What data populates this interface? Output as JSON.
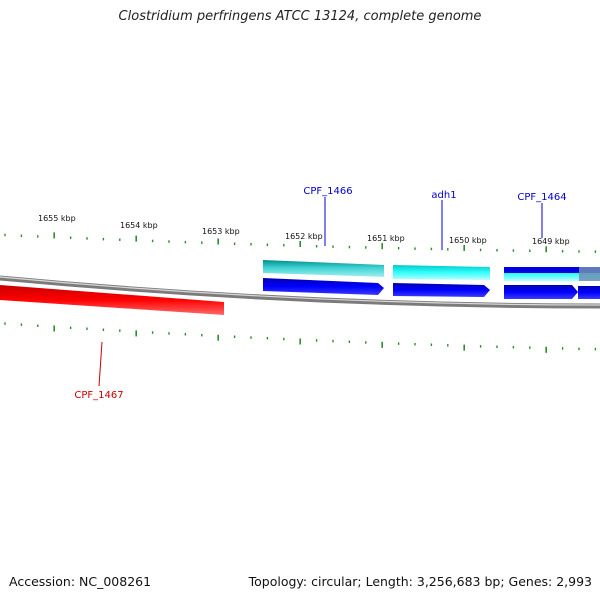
{
  "title": "Clostridium perfringens ATCC 13124, complete genome",
  "accession_line": "Accession: NC_008261",
  "stats_line": "Topology: circular; Length: 3,256,683 bp; Genes: 2,993",
  "colors": {
    "backbone": "#8a8a8a",
    "tick": "#2e8b2e",
    "cds_dark": "#0000e0",
    "cds_light": "#00e0e0",
    "cds_teal": "#00b8b8",
    "reverse_gene": "#ee0000",
    "label_blue": "#0000cc",
    "label_red": "#cc0000"
  },
  "scale": {
    "unit": "kbp",
    "labels": [
      "1655 kbp",
      "1654 kbp",
      "1653 kbp",
      "1652 kbp",
      "1651 kbp",
      "1650 kbp",
      "1649 kbp"
    ]
  },
  "genes": [
    {
      "name": "CPF_1466",
      "strand": "forward"
    },
    {
      "name": "adh1",
      "strand": "forward"
    },
    {
      "name": "CPF_1464",
      "strand": "forward"
    },
    {
      "name": "CPF_1467",
      "strand": "reverse"
    }
  ]
}
